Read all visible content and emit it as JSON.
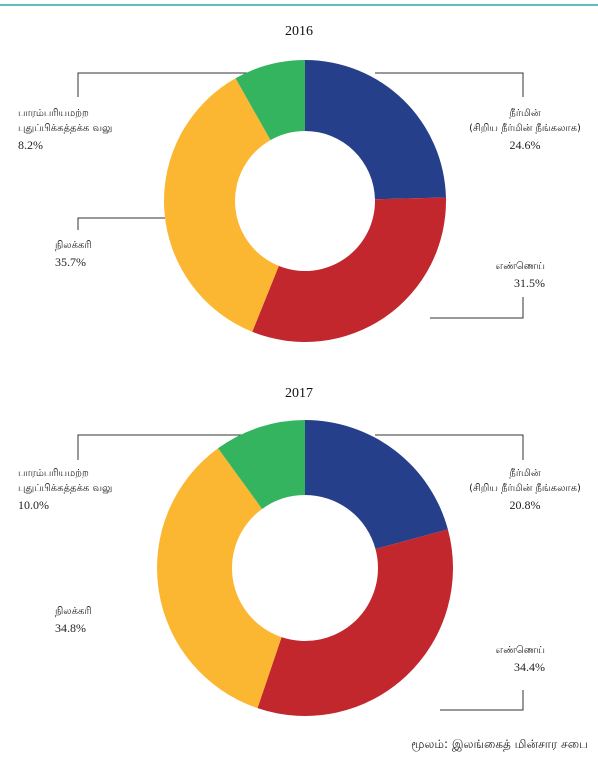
{
  "chart_data": [
    {
      "type": "donut",
      "title": "2016",
      "categories": [
        "நீர்மின்\n(சிறிய நீர்மின் நீங்கலாக)",
        "எண்ணெய்",
        "நிலக்கரி",
        "பாரம்பரியமற்ற\nபுதுப்பிக்கத்தக்க வலு"
      ],
      "values": [
        24.6,
        31.5,
        35.7,
        8.2
      ],
      "value_labels": [
        "24.6%",
        "31.5%",
        "35.7%",
        "8.2%"
      ],
      "colors": [
        "#253f8a",
        "#c1272d",
        "#fbb731",
        "#35b45f"
      ]
    },
    {
      "type": "donut",
      "title": "2017",
      "categories": [
        "நீர்மின்\n(சிறிய நீர்மின் நீங்கலாக)",
        "எண்ணெய்",
        "நிலக்கரி",
        "பாரம்பரியமற்ற\nபுதுப்பிக்கத்தக்க வலு"
      ],
      "values": [
        20.8,
        34.4,
        34.8,
        10.0
      ],
      "value_labels": [
        "20.8%",
        "34.4%",
        "34.8%",
        "10.0%"
      ],
      "colors": [
        "#253f8a",
        "#c1272d",
        "#fbb731",
        "#35b45f"
      ]
    }
  ],
  "source": "மூலம்: இலங்கைத் மின்சார சபை"
}
